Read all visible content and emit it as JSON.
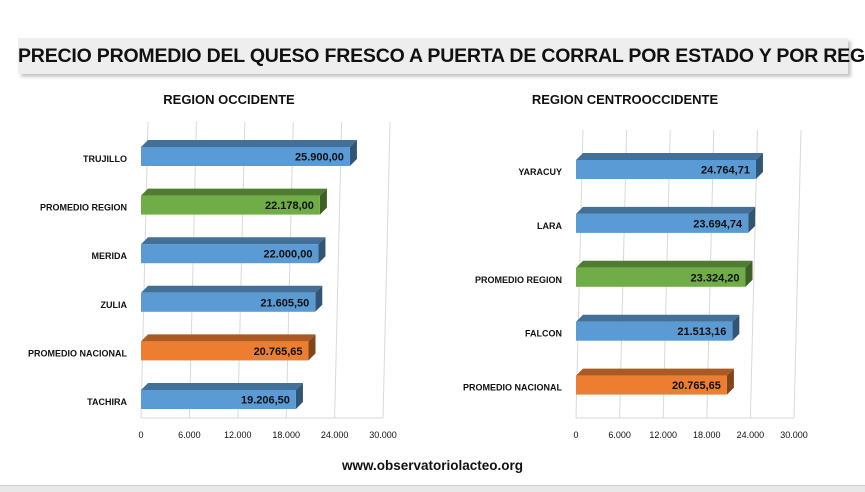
{
  "page_title": "PRECIO PROMEDIO DEL QUESO FRESCO A PUERTA DE CORRAL POR ESTADO Y POR REGION",
  "source": "www.observatoriolacteo.org",
  "colors": {
    "state_bar": "#5b9bd5",
    "region_avg_bar": "#70ad47",
    "national_avg_bar": "#ed7d31"
  },
  "chart_data": [
    {
      "type": "bar",
      "orientation": "horizontal",
      "title": "REGION OCCIDENTE",
      "categories": [
        "TRUJILLO",
        "PROMEDIO REGION",
        "MERIDA",
        "ZULIA",
        "PROMEDIO NACIONAL",
        "TACHIRA"
      ],
      "values": [
        25900.0,
        22178.0,
        22000.0,
        21605.5,
        20765.65,
        19206.5
      ],
      "value_labels": [
        "25.900,00",
        "22.178,00",
        "22.000,00",
        "21.605,50",
        "20.765,65",
        "19.206,50"
      ],
      "bar_colors": [
        "#5b9bd5",
        "#70ad47",
        "#5b9bd5",
        "#5b9bd5",
        "#ed7d31",
        "#5b9bd5"
      ],
      "x_ticks": [
        "0",
        "6.000",
        "12.000",
        "18.000",
        "24.000",
        "30.000"
      ],
      "xlim": [
        0,
        30000
      ],
      "grid": true,
      "legend": "none"
    },
    {
      "type": "bar",
      "orientation": "horizontal",
      "title": "REGION CENTROOCCIDENTE",
      "categories": [
        "YARACUY",
        "LARA",
        "PROMEDIO REGION",
        "FALCON",
        "PROMEDIO NACIONAL"
      ],
      "values": [
        24764.71,
        23694.74,
        23324.2,
        21513.16,
        20765.65
      ],
      "value_labels": [
        "24.764,71",
        "23.694,74",
        "23.324,20",
        "21.513,16",
        "20.765,65"
      ],
      "bar_colors": [
        "#5b9bd5",
        "#5b9bd5",
        "#70ad47",
        "#5b9bd5",
        "#ed7d31"
      ],
      "x_ticks": [
        "0",
        "6.000",
        "12.000",
        "18.000",
        "24.000",
        "30.000"
      ],
      "xlim": [
        0,
        30000
      ],
      "grid": true,
      "legend": "none"
    }
  ]
}
